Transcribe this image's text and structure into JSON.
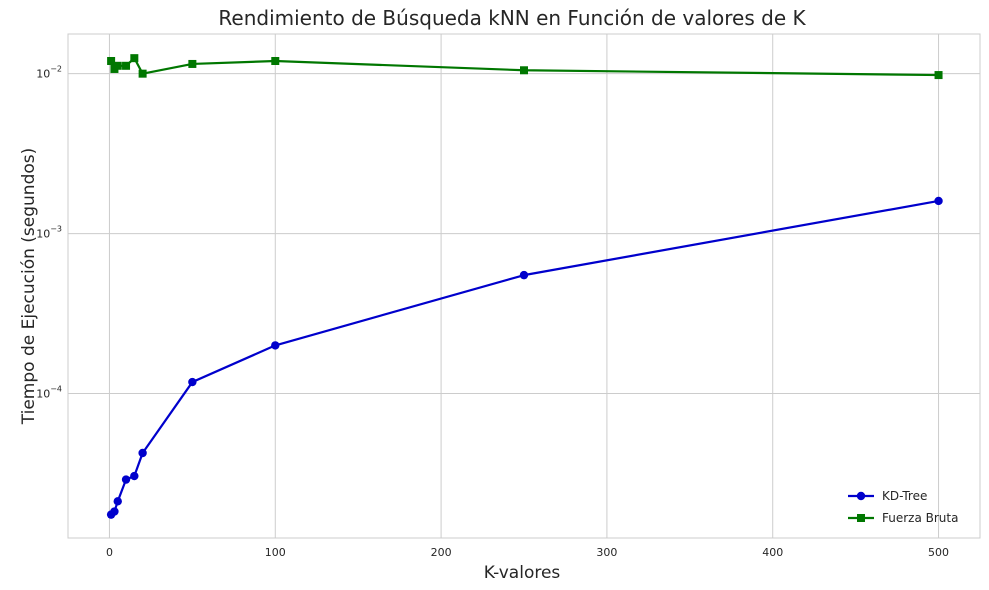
{
  "chart_data": {
    "type": "line",
    "title": "Rendimiento de Búsqueda kNN en Función de valores de K",
    "xlabel": "K-valores",
    "ylabel": "Tiempo de Ejecución (segundos)",
    "xlim": [
      -25,
      525
    ],
    "ylim": [
      1.25e-05,
      0.0177
    ],
    "yscale": "log",
    "xticks": [
      0,
      100,
      200,
      300,
      400,
      500
    ],
    "yticks": [
      {
        "value": 0.0001,
        "base": "10",
        "exp": "−4"
      },
      {
        "value": 0.001,
        "base": "10",
        "exp": "−3"
      },
      {
        "value": 0.01,
        "base": "10",
        "exp": "−2"
      }
    ],
    "grid": true,
    "legend_position": "lower-right",
    "series": [
      {
        "name": "KD-Tree",
        "color": "#0000cc",
        "marker": "circle",
        "x": [
          1,
          3,
          5,
          10,
          15,
          20,
          50,
          100,
          250,
          500
        ],
        "y": [
          1.75e-05,
          1.83e-05,
          2.12e-05,
          2.9e-05,
          3.05e-05,
          4.25e-05,
          0.000118,
          0.0002,
          0.00055,
          0.0016
        ]
      },
      {
        "name": "Fuerza Bruta",
        "color": "#007700",
        "marker": "square",
        "x": [
          1,
          3,
          5,
          10,
          15,
          20,
          50,
          100,
          250,
          500
        ],
        "y": [
          0.012,
          0.0107,
          0.0112,
          0.0112,
          0.0125,
          0.01,
          0.0115,
          0.012,
          0.0105,
          0.0098
        ]
      }
    ]
  }
}
